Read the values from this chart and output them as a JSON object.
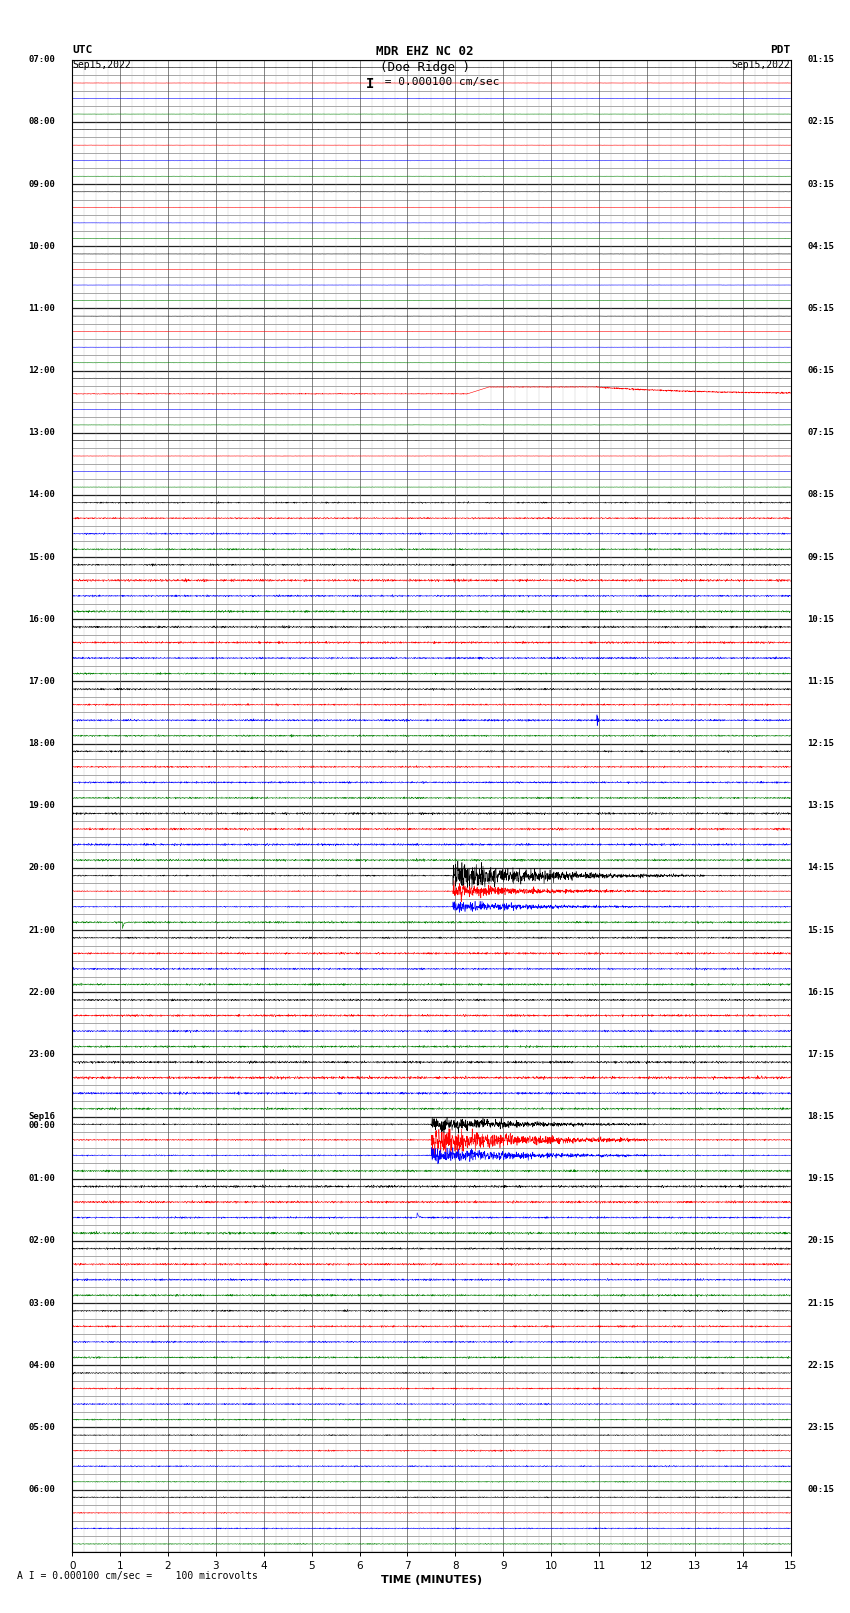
{
  "title_line1": "MDR EHZ NC 02",
  "title_line2": "(Doe Ridge )",
  "scale_text": "= 0.000100 cm/sec",
  "xlabel": "TIME (MINUTES)",
  "footer_text": "A I = 0.000100 cm/sec =    100 microvolts",
  "bg_color": "#ffffff",
  "xlim": [
    0,
    15
  ],
  "xticks": [
    0,
    1,
    2,
    3,
    4,
    5,
    6,
    7,
    8,
    9,
    10,
    11,
    12,
    13,
    14,
    15
  ],
  "left_time_labels": [
    "07:00",
    "",
    "",
    "",
    "08:00",
    "",
    "",
    "",
    "09:00",
    "",
    "",
    "",
    "10:00",
    "",
    "",
    "",
    "11:00",
    "",
    "",
    "",
    "12:00",
    "",
    "",
    "",
    "13:00",
    "",
    "",
    "",
    "14:00",
    "",
    "",
    "",
    "15:00",
    "",
    "",
    "",
    "16:00",
    "",
    "",
    "",
    "17:00",
    "",
    "",
    "",
    "18:00",
    "",
    "",
    "",
    "19:00",
    "",
    "",
    "",
    "20:00",
    "",
    "",
    "",
    "21:00",
    "",
    "",
    "",
    "22:00",
    "",
    "",
    "",
    "23:00",
    "",
    "",
    "",
    "Sep16\n00:00",
    "",
    "",
    "",
    "01:00",
    "",
    "",
    "",
    "02:00",
    "",
    "",
    "",
    "03:00",
    "",
    "",
    "",
    "04:00",
    "",
    "",
    "",
    "05:00",
    "",
    "",
    "",
    "06:00",
    "",
    ""
  ],
  "right_time_labels": [
    "00:15",
    "",
    "",
    "",
    "01:15",
    "",
    "",
    "",
    "02:15",
    "",
    "",
    "",
    "03:15",
    "",
    "",
    "",
    "04:15",
    "",
    "",
    "",
    "05:15",
    "",
    "",
    "",
    "06:15",
    "",
    "",
    "",
    "07:15",
    "",
    "",
    "",
    "08:15",
    "",
    "",
    "",
    "09:15",
    "",
    "",
    "",
    "10:15",
    "",
    "",
    "",
    "11:15",
    "",
    "",
    "",
    "12:15",
    "",
    "",
    "",
    "13:15",
    "",
    "",
    "",
    "14:15",
    "",
    "",
    "",
    "15:15",
    "",
    "",
    "",
    "16:15",
    "",
    "",
    "",
    "17:15",
    "",
    "",
    "",
    "18:15",
    "",
    "",
    "",
    "19:15",
    "",
    "",
    "",
    "20:15",
    "",
    "",
    "",
    "21:15",
    "",
    "",
    "",
    "22:15",
    "",
    "",
    "",
    "23:15",
    "",
    ""
  ],
  "colors_per_row_group": [
    "black",
    "red",
    "blue",
    "green"
  ],
  "num_rows": 95
}
